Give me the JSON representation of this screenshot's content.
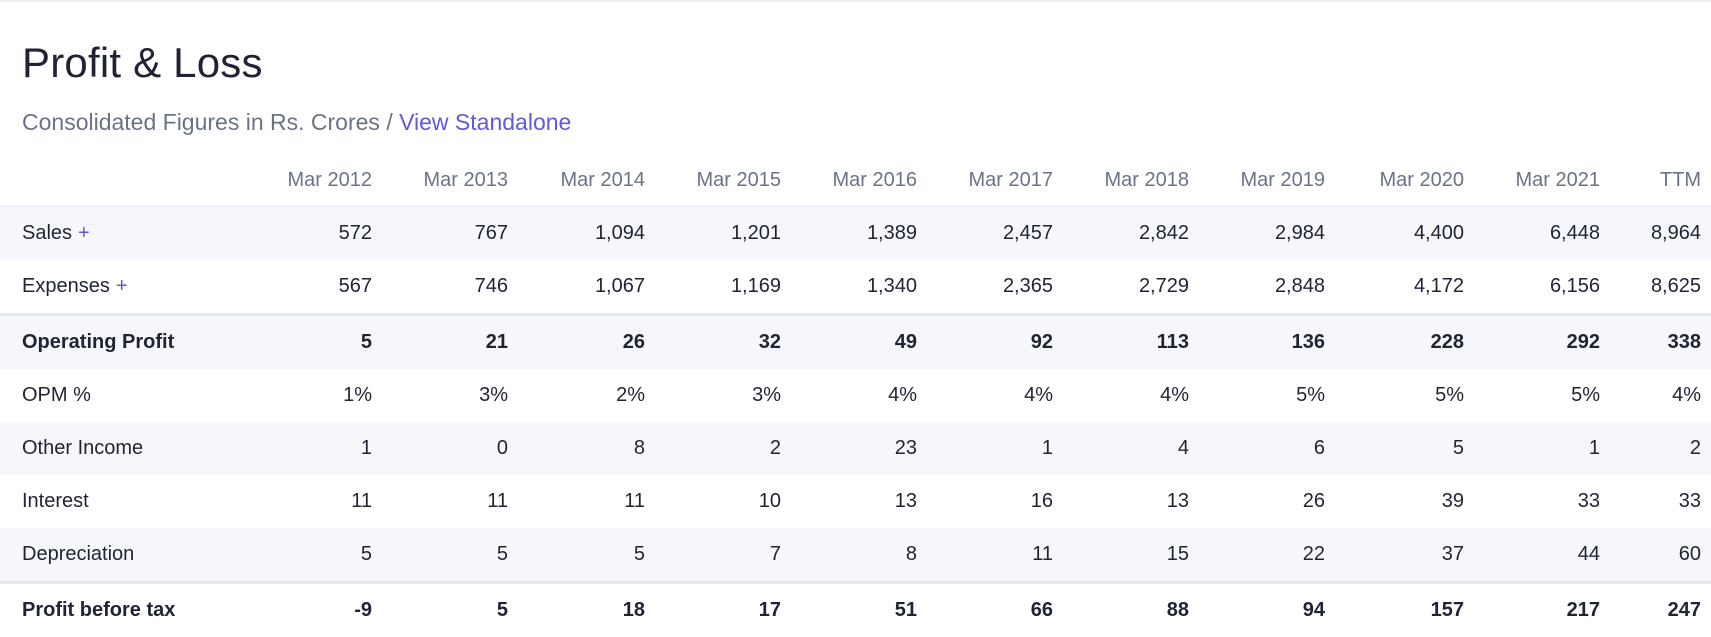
{
  "header": {
    "title": "Profit & Loss",
    "subtitle_text": "Consolidated Figures in Rs. Crores / ",
    "standalone_link": "View Standalone"
  },
  "table": {
    "columns": [
      "Mar 2012",
      "Mar 2013",
      "Mar 2014",
      "Mar 2015",
      "Mar 2016",
      "Mar 2017",
      "Mar 2018",
      "Mar 2019",
      "Mar 2020",
      "Mar 2021",
      "TTM"
    ],
    "expand_symbol": "+",
    "rows": [
      {
        "label": "Sales",
        "expandable": true,
        "values": [
          "572",
          "767",
          "1,094",
          "1,201",
          "1,389",
          "2,457",
          "2,842",
          "2,984",
          "4,400",
          "6,448",
          "8,964"
        ]
      },
      {
        "label": "Expenses",
        "expandable": true,
        "values": [
          "567",
          "746",
          "1,067",
          "1,169",
          "1,340",
          "2,365",
          "2,729",
          "2,848",
          "4,172",
          "6,156",
          "8,625"
        ]
      },
      {
        "label": "Operating Profit",
        "values": [
          "5",
          "21",
          "26",
          "32",
          "49",
          "92",
          "113",
          "136",
          "228",
          "292",
          "338"
        ]
      },
      {
        "label": "OPM %",
        "values": [
          "1%",
          "3%",
          "2%",
          "3%",
          "4%",
          "4%",
          "4%",
          "5%",
          "5%",
          "5%",
          "4%"
        ]
      },
      {
        "label": "Other Income",
        "values": [
          "1",
          "0",
          "8",
          "2",
          "23",
          "1",
          "4",
          "6",
          "5",
          "1",
          "2"
        ]
      },
      {
        "label": "Interest",
        "values": [
          "11",
          "11",
          "11",
          "10",
          "13",
          "16",
          "13",
          "26",
          "39",
          "33",
          "33"
        ]
      },
      {
        "label": "Depreciation",
        "values": [
          "5",
          "5",
          "5",
          "7",
          "8",
          "11",
          "15",
          "22",
          "37",
          "44",
          "60"
        ]
      },
      {
        "label": "Profit before tax",
        "values": [
          "-9",
          "5",
          "18",
          "17",
          "51",
          "66",
          "88",
          "94",
          "157",
          "217",
          "247"
        ]
      }
    ]
  }
}
